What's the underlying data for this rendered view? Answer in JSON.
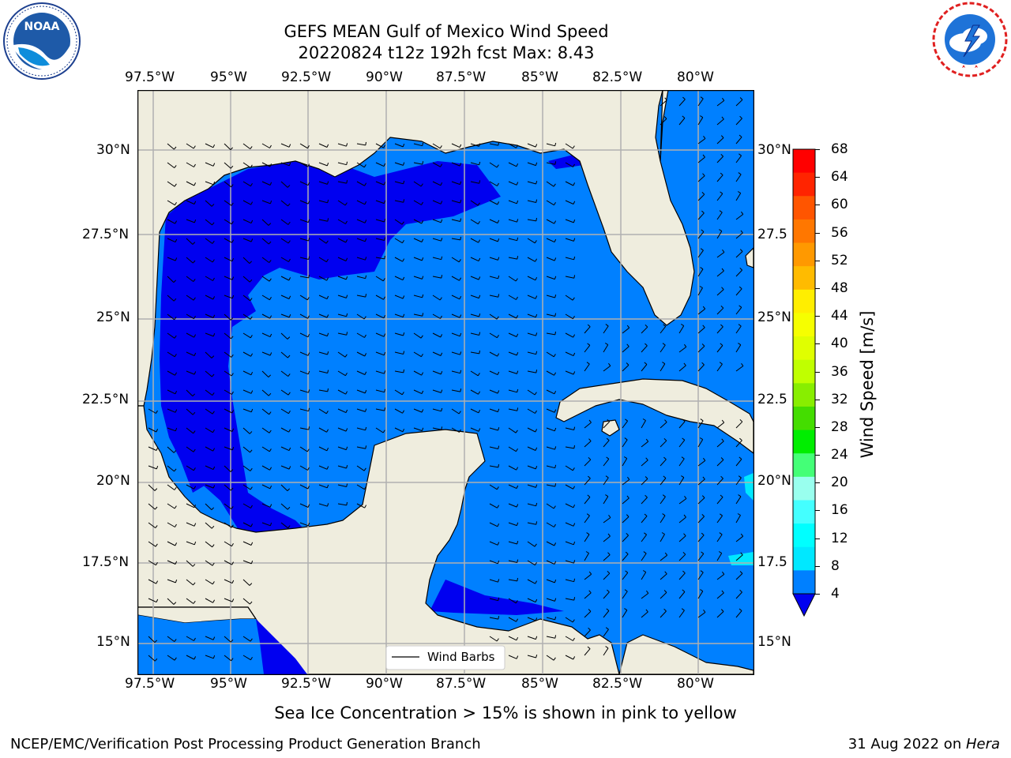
{
  "title": {
    "line1": "GEFS MEAN Gulf of Mexico Wind Speed",
    "line2": "20220824 t12z 192h fcst   Max: 8.43"
  },
  "logos": {
    "left": {
      "icon": "noaa-logo",
      "text": "NOAA",
      "ring_text": "NATIONAL OCEANIC AND ATMOSPHERIC ADMINISTRATION · U.S. DEPARTMENT OF COMMERCE"
    },
    "right": {
      "icon": "nws-logo",
      "ring_text": "NATIONAL WEATHER SERVICE"
    }
  },
  "map": {
    "lon_labels": [
      "97.5°W",
      "95°W",
      "92.5°W",
      "90°W",
      "87.5°W",
      "85°W",
      "82.5°W",
      "80°W"
    ],
    "lat_labels_left": [
      "30°N",
      "27.5°N",
      "25°N",
      "22.5°N",
      "20°N",
      "17.5°N",
      "15°N"
    ],
    "lat_labels_right": [
      "30°N",
      "27.5",
      "25°N",
      "22.5",
      "20°N",
      "17.5",
      "15°N"
    ],
    "legend_label": "Wind Barbs",
    "colors": {
      "land": "#efedde",
      "sea_4_8": "#0080ff",
      "sea_lt4": "#0000f0",
      "sea_8_12": "#00e8ff"
    }
  },
  "colorbar": {
    "label": "Wind Speed [m/s]",
    "ticks": [
      "68",
      "64",
      "60",
      "56",
      "52",
      "48",
      "44",
      "40",
      "36",
      "32",
      "28",
      "24",
      "20",
      "16",
      "12",
      "8",
      "4"
    ],
    "colors": [
      "#ff0000",
      "#ff2400",
      "#ff5500",
      "#ff7700",
      "#ff9900",
      "#ffbb00",
      "#ffee00",
      "#f6ff00",
      "#e0ff00",
      "#c0ff00",
      "#88ee00",
      "#44dd00",
      "#00ee00",
      "#44ff77",
      "#99ffee",
      "#44ffff",
      "#00ffff",
      "#00e8ff",
      "#0080ff"
    ],
    "underflow_color": "#0000f0"
  },
  "note": "Sea Ice Concentration > 15% is shown in pink to yellow",
  "footer": {
    "left": "NCEP/EMC/Verification Post Processing Product Generation Branch",
    "right_date": "31 Aug 2022 on ",
    "right_machine": "Hera"
  }
}
